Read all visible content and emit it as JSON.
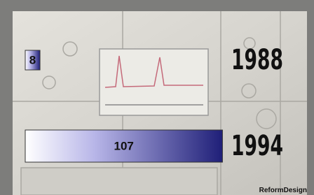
{
  "chart_data": {
    "type": "bar",
    "orientation": "horizontal",
    "categories": [
      "1988",
      "1994"
    ],
    "values": [
      8,
      107
    ],
    "value_labels": [
      "8",
      "107"
    ],
    "color": "#1f1f78",
    "source": "ReformDesign"
  }
}
